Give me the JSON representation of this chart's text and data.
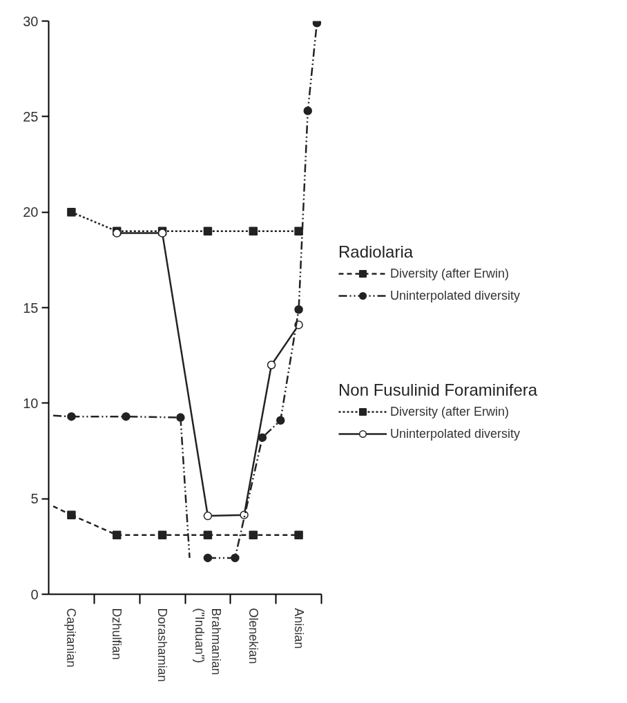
{
  "chart_data": {
    "type": "line",
    "legend_title": [
      "Radiolaria",
      "Non Fusulinid Foraminifera"
    ],
    "ylim": [
      0,
      30
    ],
    "yticks": [
      0,
      5,
      10,
      15,
      20,
      25,
      30
    ],
    "categories": [
      null,
      null,
      "Capitanian",
      null,
      null,
      null,
      null,
      "Dzhulfian",
      null,
      null,
      null,
      null,
      "Dorashamian",
      null,
      null,
      null,
      null,
      "Brahmanian\n(\"Induan\")",
      null,
      null,
      null,
      null,
      "Olenekian",
      null,
      null,
      null,
      null,
      "Anisian",
      null,
      null
    ],
    "legend": "right",
    "series": [
      {
        "name": "Diversity (after Erwin)",
        "color": "#222222",
        "line_style": "dashed",
        "marker": "square",
        "values": [
          null,
          null,
          4.15,
          null,
          null,
          null,
          null,
          3.1,
          null,
          null,
          null,
          null,
          3.1,
          null,
          null,
          null,
          null,
          3.1,
          null,
          null,
          null,
          null,
          3.1,
          null,
          null,
          null,
          null,
          3.1,
          null,
          null
        ]
      },
      {
        "name": "Uninterpolated diversity",
        "color": "#222222",
        "line_style": "dashdotdot",
        "marker": "circle",
        "values": [
          null,
          null,
          9.3,
          null,
          null,
          null,
          null,
          null,
          9.3,
          null,
          null,
          null,
          null,
          null,
          9.25,
          null,
          null,
          null,
          null,
          null,
          null,
          null,
          null,
          null,
          null,
          null,
          null,
          null,
          null,
          null
        ]
      },
      {
        "name": "Diversity (after Erwin)",
        "color": "#222222",
        "line_style": "dotted",
        "marker": "square",
        "values": [
          null,
          null,
          20,
          null,
          null,
          null,
          null,
          19,
          null,
          null,
          null,
          null,
          19,
          null,
          null,
          null,
          null,
          19,
          null,
          null,
          null,
          null,
          19,
          null,
          null,
          null,
          null,
          19,
          null,
          null
        ]
      },
      {
        "name": "Uninterpolated diversity",
        "color": "#222222",
        "line_style": "solid",
        "marker": "circle_open",
        "values": [
          null,
          null,
          null,
          null,
          null,
          null,
          null,
          18.9,
          null,
          null,
          null,
          null,
          18.9,
          null,
          null,
          null,
          null,
          4.1,
          null,
          null,
          null,
          4.15,
          null,
          null,
          12,
          null,
          null,
          14.1,
          null,
          null
        ]
      },
      {
        "color": "#222222",
        "line_style": "dashed",
        "marker": "none",
        "values": [
          4.6,
          null,
          4.15,
          null,
          null,
          null,
          null,
          null,
          null,
          null,
          null,
          null,
          null,
          null,
          null,
          null,
          null,
          null,
          null,
          null,
          null,
          null,
          null,
          null,
          null,
          null,
          null,
          null,
          null,
          null
        ]
      },
      {
        "color": "#222222",
        "line_style": "dashdotdot",
        "marker": "none",
        "values": [
          9.35,
          null,
          9.3,
          null,
          null,
          null,
          null,
          null,
          null,
          null,
          null,
          null,
          null,
          null,
          null,
          null,
          null,
          null,
          null,
          null,
          null,
          null,
          null,
          null,
          null,
          null,
          null,
          null,
          null,
          null
        ]
      },
      {
        "color": "#222222",
        "line_style": "dashdotdot",
        "marker": "none",
        "values": [
          null,
          null,
          null,
          null,
          null,
          null,
          null,
          null,
          null,
          null,
          null,
          null,
          null,
          null,
          9.25,
          1.9,
          null,
          null,
          null,
          null,
          null,
          null,
          null,
          null,
          null,
          null,
          null,
          null,
          null,
          null
        ]
      },
      {
        "color": "#222222",
        "line_style": "dashdotdot",
        "marker": "circle",
        "values": [
          null,
          null,
          null,
          null,
          null,
          null,
          null,
          null,
          null,
          null,
          null,
          null,
          null,
          null,
          null,
          null,
          null,
          1.9,
          null,
          null,
          1.9,
          null,
          null,
          8.2,
          null,
          9.1,
          null,
          14.9,
          25.3,
          29.9
        ]
      }
    ]
  }
}
